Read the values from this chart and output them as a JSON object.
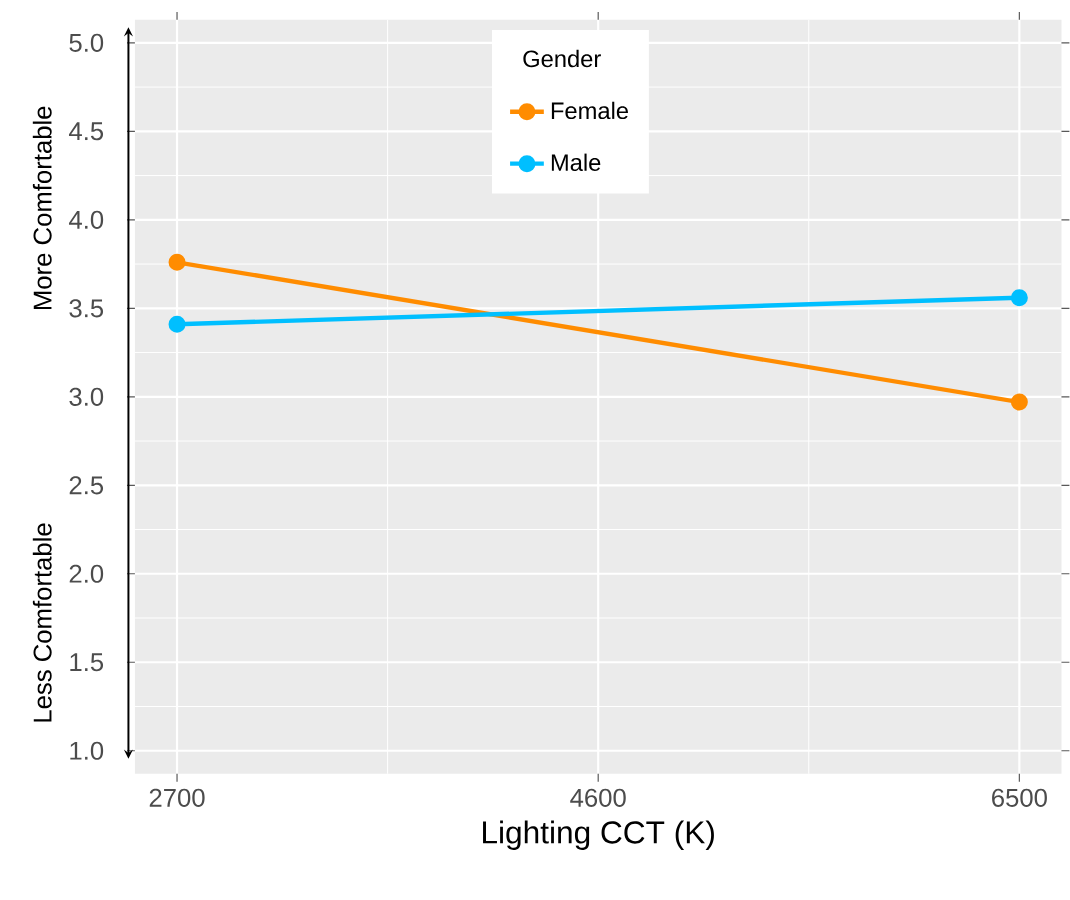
{
  "chart_data": {
    "type": "line",
    "xlabel": "Lighting CCT (K)",
    "legend_title": "Gender",
    "x": [
      2700,
      6500
    ],
    "series": [
      {
        "name": "Female",
        "color": "#ff8c00",
        "values": [
          3.76,
          2.97
        ]
      },
      {
        "name": "Male",
        "color": "#00bfff",
        "values": [
          3.41,
          3.56
        ]
      }
    ],
    "xlim": [
      2510,
      6690
    ],
    "ylim": [
      0.87,
      5.13
    ],
    "xticks": [
      2700,
      4600,
      6500
    ],
    "yticks": [
      {
        "value": 1,
        "label": "1.0"
      },
      {
        "value": 1.5,
        "label": "1.5"
      },
      {
        "value": 2,
        "label": "2.0"
      },
      {
        "value": 2.5,
        "label": "2.5"
      },
      {
        "value": 3,
        "label": "3.0"
      },
      {
        "value": 3.5,
        "label": "3.5"
      },
      {
        "value": 4,
        "label": "4.0"
      },
      {
        "value": 4.5,
        "label": "4.5"
      },
      {
        "value": 5,
        "label": "5.0"
      }
    ],
    "annotations": [
      "Less Comfortable",
      "More Comfortable"
    ],
    "grid": true,
    "legend": "top",
    "marker": "circle",
    "line_style": "solid"
  }
}
